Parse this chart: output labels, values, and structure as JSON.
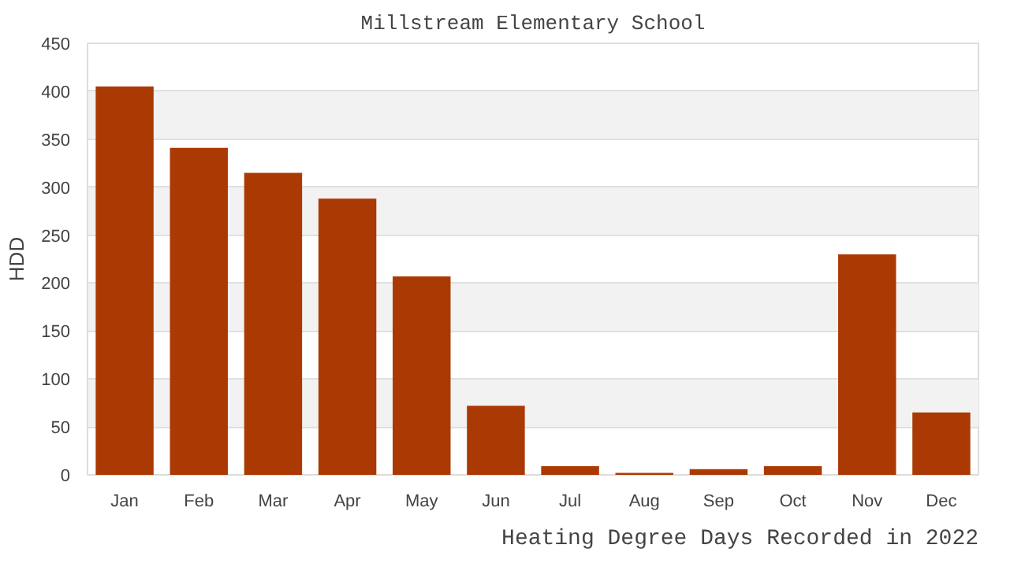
{
  "chart_data": {
    "type": "bar",
    "title": "Millstream Elementary School",
    "xlabel": "Heating Degree Days Recorded in 2022",
    "ylabel": "HDD",
    "categories": [
      "Jan",
      "Feb",
      "Mar",
      "Apr",
      "May",
      "Jun",
      "Jul",
      "Aug",
      "Sep",
      "Oct",
      "Nov",
      "Dec"
    ],
    "values": [
      405,
      341,
      315,
      288,
      207,
      72,
      9,
      2,
      6,
      9,
      230,
      65
    ],
    "color": "#ab3903",
    "ylim": [
      0,
      450
    ],
    "yticks": [
      0,
      50,
      100,
      150,
      200,
      250,
      300,
      350,
      400,
      450
    ],
    "grid": "y"
  }
}
